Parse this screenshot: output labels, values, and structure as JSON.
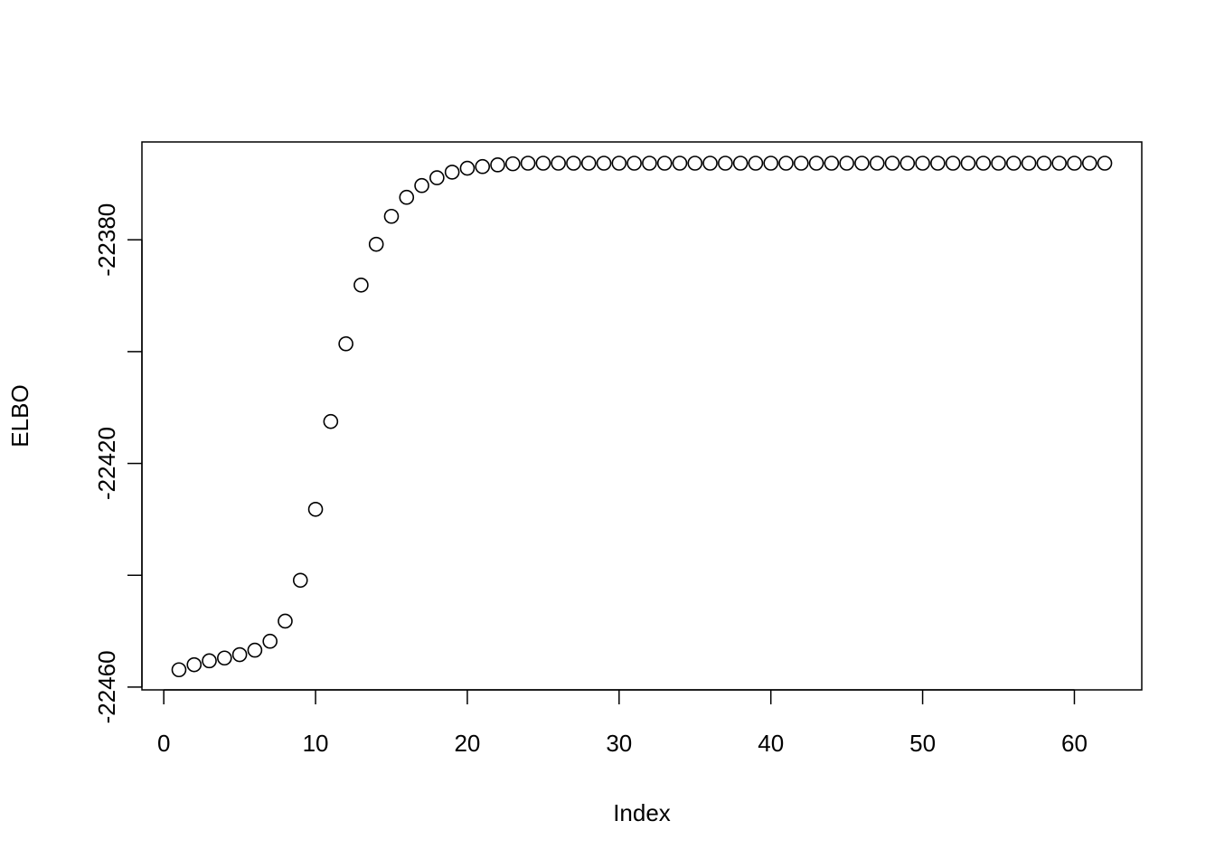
{
  "chart_data": {
    "type": "scatter",
    "xlabel": "Index",
    "ylabel": "ELBO",
    "x": [
      1,
      2,
      3,
      4,
      5,
      6,
      7,
      8,
      9,
      10,
      11,
      12,
      13,
      14,
      15,
      16,
      17,
      18,
      19,
      20,
      21,
      22,
      23,
      24,
      25,
      26,
      27,
      28,
      29,
      30,
      31,
      32,
      33,
      34,
      35,
      36,
      37,
      38,
      39,
      40,
      41,
      42,
      43,
      44,
      45,
      46,
      47,
      48,
      49,
      50,
      51,
      52,
      53,
      54,
      55,
      56,
      57,
      58,
      59,
      60,
      61,
      62
    ],
    "values": [
      -22456.9,
      -22456.0,
      -22455.3,
      -22454.8,
      -22454.2,
      -22453.4,
      -22451.8,
      -22448.2,
      -22440.9,
      -22428.2,
      -22412.5,
      -22398.6,
      -22388.1,
      -22380.8,
      -22375.8,
      -22372.4,
      -22370.3,
      -22368.9,
      -22367.9,
      -22367.2,
      -22366.9,
      -22366.6,
      -22366.4,
      -22366.3,
      -22366.3,
      -22366.3,
      -22366.3,
      -22366.3,
      -22366.3,
      -22366.3,
      -22366.3,
      -22366.3,
      -22366.3,
      -22366.3,
      -22366.3,
      -22366.3,
      -22366.3,
      -22366.3,
      -22366.3,
      -22366.3,
      -22366.3,
      -22366.3,
      -22366.3,
      -22366.3,
      -22366.3,
      -22366.3,
      -22366.3,
      -22366.3,
      -22366.3,
      -22366.3,
      -22366.3,
      -22366.3,
      -22366.3,
      -22366.3,
      -22366.3,
      -22366.3,
      -22366.3,
      -22366.3,
      -22366.3,
      -22366.3,
      -22366.3,
      -22366.3
    ],
    "color": "#000000",
    "xlim": [
      -1.44,
      64.44
    ],
    "xticks": [
      0,
      10,
      20,
      30,
      40,
      50,
      60
    ],
    "ylim": [
      -22460.5,
      -22362.5
    ],
    "yticks": [
      -22460,
      {
        "value": -22440,
        "label": null
      },
      -22420,
      {
        "value": -22400,
        "label": null
      },
      -22380
    ],
    "grid": false
  }
}
